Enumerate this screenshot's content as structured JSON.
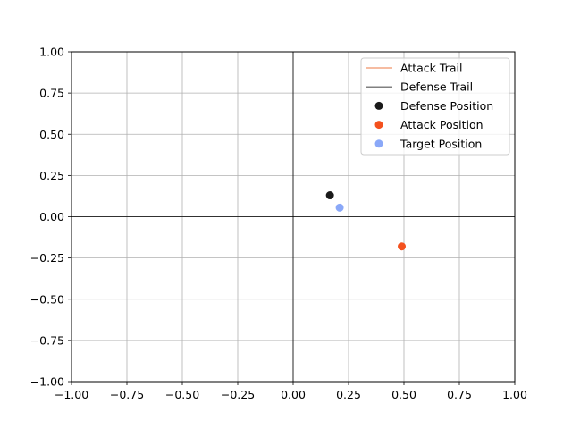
{
  "chart_data": {
    "type": "scatter",
    "title": "",
    "xlabel": "",
    "ylabel": "",
    "xlim": [
      -1.0,
      1.0
    ],
    "ylim": [
      -1.0,
      1.0
    ],
    "grid": true,
    "legend_position": "top-right",
    "x_ticks": [
      -1.0,
      -0.75,
      -0.5,
      -0.25,
      0.0,
      0.25,
      0.5,
      0.75,
      1.0
    ],
    "y_ticks": [
      -1.0,
      -0.75,
      -0.5,
      -0.25,
      0.0,
      0.25,
      0.5,
      0.75,
      1.0
    ],
    "x_tick_labels": [
      "−1.00",
      "−0.75",
      "−0.50",
      "−0.25",
      "0.00",
      "0.25",
      "0.50",
      "0.75",
      "1.00"
    ],
    "y_tick_labels": [
      "−1.00",
      "−0.75",
      "−0.50",
      "−0.25",
      "0.00",
      "0.25",
      "0.50",
      "0.75",
      "1.00"
    ],
    "series": [
      {
        "name": "Attack Trail",
        "kind": "line",
        "color": "#f4a582",
        "points": []
      },
      {
        "name": "Defense Trail",
        "kind": "line",
        "color": "#808080",
        "points": []
      },
      {
        "name": "Defense Position",
        "kind": "point",
        "color": "#1a1a1a",
        "points": [
          [
            0.166,
            0.13
          ]
        ]
      },
      {
        "name": "Attack Position",
        "kind": "point",
        "color": "#f4511e",
        "points": [
          [
            0.49,
            -0.18
          ]
        ]
      },
      {
        "name": "Target Position",
        "kind": "point",
        "color": "#8aa8f8",
        "points": [
          [
            0.21,
            0.055
          ]
        ]
      }
    ]
  }
}
